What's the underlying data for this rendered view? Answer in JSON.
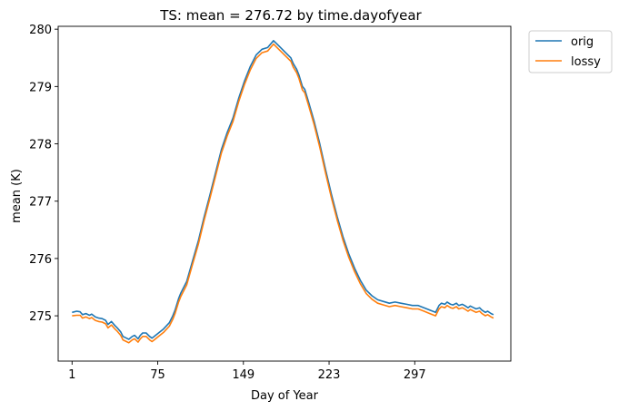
{
  "chart_data": {
    "type": "line",
    "title": "TS: mean =  276.72 by time.dayofyear",
    "xlabel": "Day of Year",
    "ylabel": "mean (K)",
    "xlim": [
      -11,
      380
    ],
    "ylim": [
      274.21,
      280.05
    ],
    "xticks": [
      1,
      75,
      149,
      223,
      297
    ],
    "yticks": [
      275,
      276,
      277,
      278,
      279,
      280
    ],
    "grid": false,
    "legend_position": "outside-top-right",
    "series": [
      {
        "name": "orig",
        "color": "#1f77b4",
        "x": [
          1,
          5,
          8,
          10,
          13,
          16,
          18,
          21,
          24,
          27,
          30,
          32,
          35,
          38,
          40,
          43,
          45,
          48,
          50,
          53,
          55,
          58,
          60,
          62,
          65,
          68,
          70,
          72,
          75,
          80,
          85,
          88,
          90,
          93,
          95,
          100,
          105,
          110,
          115,
          120,
          125,
          130,
          135,
          140,
          145,
          150,
          155,
          160,
          165,
          170,
          175,
          180,
          185,
          190,
          192,
          195,
          197,
          200,
          202,
          205,
          210,
          215,
          220,
          225,
          230,
          235,
          240,
          245,
          250,
          255,
          260,
          265,
          270,
          275,
          280,
          285,
          290,
          295,
          300,
          305,
          310,
          315,
          318,
          320,
          323,
          325,
          328,
          330,
          333,
          335,
          338,
          340,
          343,
          345,
          348,
          350,
          353,
          355,
          358,
          360,
          363,
          365
        ],
        "values": [
          275.06,
          275.08,
          275.07,
          275.02,
          275.04,
          275.01,
          275.03,
          274.98,
          274.96,
          274.95,
          274.92,
          274.85,
          274.9,
          274.83,
          274.79,
          274.72,
          274.64,
          274.61,
          274.59,
          274.64,
          274.66,
          274.6,
          274.66,
          274.7,
          274.7,
          274.64,
          274.61,
          274.64,
          274.69,
          274.77,
          274.88,
          275.0,
          275.1,
          275.3,
          275.4,
          275.6,
          275.95,
          276.3,
          276.72,
          277.1,
          277.5,
          277.9,
          278.2,
          278.45,
          278.8,
          279.1,
          279.35,
          279.55,
          279.65,
          279.68,
          279.8,
          279.7,
          279.6,
          279.5,
          279.4,
          279.3,
          279.2,
          279.0,
          278.95,
          278.75,
          278.4,
          278.0,
          277.55,
          277.12,
          276.73,
          276.38,
          276.08,
          275.83,
          275.62,
          275.45,
          275.35,
          275.28,
          275.25,
          275.22,
          275.24,
          275.22,
          275.2,
          275.18,
          275.18,
          275.14,
          275.1,
          275.06,
          275.18,
          275.22,
          275.2,
          275.24,
          275.2,
          275.19,
          275.22,
          275.18,
          275.2,
          275.18,
          275.14,
          275.17,
          275.14,
          275.12,
          275.14,
          275.1,
          275.06,
          275.08,
          275.04,
          275.02
        ]
      },
      {
        "name": "lossy",
        "color": "#ff7f0e",
        "x": [
          1,
          5,
          8,
          10,
          13,
          16,
          18,
          21,
          24,
          27,
          30,
          32,
          35,
          38,
          40,
          43,
          45,
          48,
          50,
          53,
          55,
          58,
          60,
          62,
          65,
          68,
          70,
          72,
          75,
          80,
          85,
          88,
          90,
          93,
          95,
          100,
          105,
          110,
          115,
          120,
          125,
          130,
          135,
          140,
          145,
          150,
          155,
          160,
          165,
          170,
          175,
          180,
          185,
          190,
          192,
          195,
          197,
          200,
          202,
          205,
          210,
          215,
          220,
          225,
          230,
          235,
          240,
          245,
          250,
          255,
          260,
          265,
          270,
          275,
          280,
          285,
          290,
          295,
          300,
          305,
          310,
          315,
          318,
          320,
          323,
          325,
          328,
          330,
          333,
          335,
          338,
          340,
          343,
          345,
          348,
          350,
          353,
          355,
          358,
          360,
          363,
          365
        ],
        "values": [
          275.0,
          275.01,
          275.01,
          274.96,
          274.98,
          274.95,
          274.97,
          274.92,
          274.9,
          274.89,
          274.86,
          274.79,
          274.84,
          274.77,
          274.73,
          274.66,
          274.58,
          274.55,
          274.53,
          274.58,
          274.6,
          274.54,
          274.6,
          274.64,
          274.64,
          274.58,
          274.55,
          274.58,
          274.63,
          274.71,
          274.82,
          274.94,
          275.04,
          275.24,
          275.34,
          275.54,
          275.89,
          276.24,
          276.66,
          277.04,
          277.44,
          277.84,
          278.14,
          278.39,
          278.74,
          279.04,
          279.29,
          279.49,
          279.59,
          279.62,
          279.74,
          279.64,
          279.54,
          279.44,
          279.34,
          279.24,
          279.14,
          278.94,
          278.89,
          278.69,
          278.34,
          277.94,
          277.49,
          277.06,
          276.67,
          276.32,
          276.02,
          275.77,
          275.56,
          275.39,
          275.29,
          275.22,
          275.19,
          275.16,
          275.18,
          275.16,
          275.14,
          275.12,
          275.12,
          275.08,
          275.04,
          275.0,
          275.12,
          275.16,
          275.14,
          275.18,
          275.14,
          275.13,
          275.16,
          275.12,
          275.14,
          275.12,
          275.08,
          275.11,
          275.08,
          275.06,
          275.08,
          275.04,
          275.0,
          275.02,
          274.98,
          274.96
        ]
      }
    ]
  }
}
